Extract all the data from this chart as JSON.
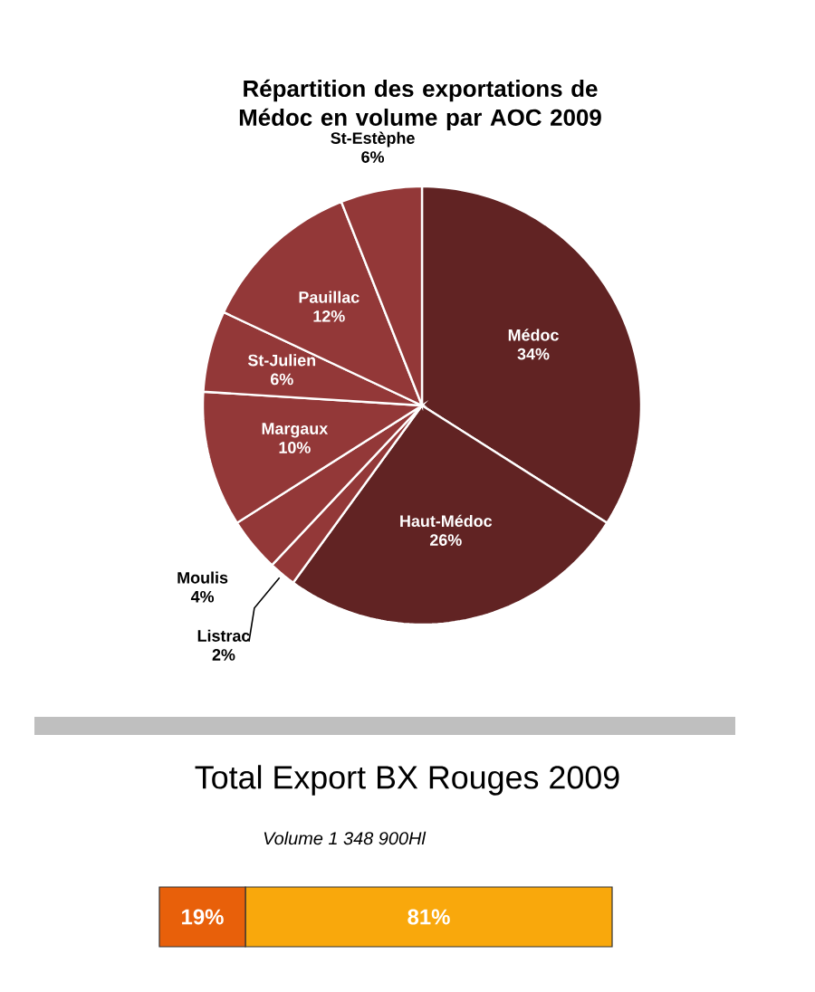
{
  "chart_data": [
    {
      "type": "pie",
      "title": "Répartition des exportations de Médoc en volume par AOC 2009",
      "categories": [
        "Médoc",
        "Haut-Médoc",
        "Listrac",
        "Moulis",
        "Margaux",
        "St-Julien",
        "Pauillac",
        "St-Estèphe"
      ],
      "values": [
        34,
        26,
        2,
        4,
        10,
        6,
        12,
        6
      ],
      "value_labels": [
        "34%",
        "26%",
        "2%",
        "4%",
        "10%",
        "6%",
        "12%",
        "6%"
      ],
      "colors": [
        "#612323",
        "#612323",
        "#933838",
        "#933838",
        "#933838",
        "#933838",
        "#933838",
        "#933838"
      ]
    },
    {
      "type": "bar",
      "title": "Total Export BX Rouges 2009",
      "subtitle": "Volume   1 348 900Hl",
      "orientation": "horizontal",
      "stacked": true,
      "categories": [
        null
      ],
      "series": [
        {
          "color": "#e8600a",
          "values": [
            19
          ],
          "value_labels": [
            "19%"
          ]
        },
        {
          "color": "#f9a80c",
          "values": [
            81
          ],
          "value_labels": [
            "81%"
          ]
        }
      ]
    }
  ]
}
